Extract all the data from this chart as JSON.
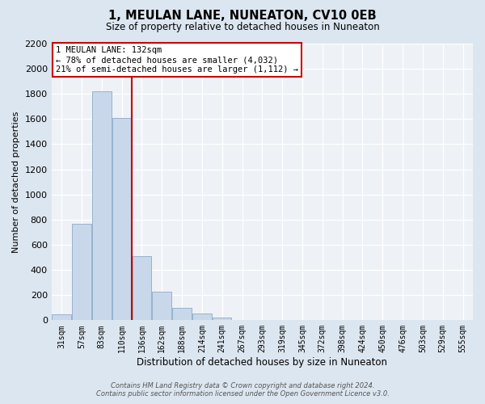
{
  "title": "1, MEULAN LANE, NUNEATON, CV10 0EB",
  "subtitle": "Size of property relative to detached houses in Nuneaton",
  "xlabel": "Distribution of detached houses by size in Nuneaton",
  "ylabel": "Number of detached properties",
  "bar_color": "#c8d8ea",
  "bar_edge_color": "#8aaac8",
  "categories": [
    "31sqm",
    "57sqm",
    "83sqm",
    "110sqm",
    "136sqm",
    "162sqm",
    "188sqm",
    "214sqm",
    "241sqm",
    "267sqm",
    "293sqm",
    "319sqm",
    "345sqm",
    "372sqm",
    "398sqm",
    "424sqm",
    "450sqm",
    "476sqm",
    "503sqm",
    "529sqm",
    "555sqm"
  ],
  "values": [
    50,
    770,
    1820,
    1610,
    510,
    230,
    100,
    55,
    20,
    0,
    0,
    0,
    0,
    0,
    0,
    0,
    0,
    0,
    0,
    0,
    0
  ],
  "ylim": [
    0,
    2200
  ],
  "yticks": [
    0,
    200,
    400,
    600,
    800,
    1000,
    1200,
    1400,
    1600,
    1800,
    2000,
    2200
  ],
  "vline_x_index": 4,
  "vline_color": "#cc0000",
  "ann_line1": "1 MEULAN LANE: 132sqm",
  "ann_line2": "← 78% of detached houses are smaller (4,032)",
  "ann_line3": "21% of semi-detached houses are larger (1,112) →",
  "annotation_box_color": "#ffffff",
  "annotation_box_edge": "#cc0000",
  "footer_line1": "Contains HM Land Registry data © Crown copyright and database right 2024.",
  "footer_line2": "Contains public sector information licensed under the Open Government Licence v3.0.",
  "background_color": "#dce6f0",
  "plot_bg_color": "#eef2f7"
}
